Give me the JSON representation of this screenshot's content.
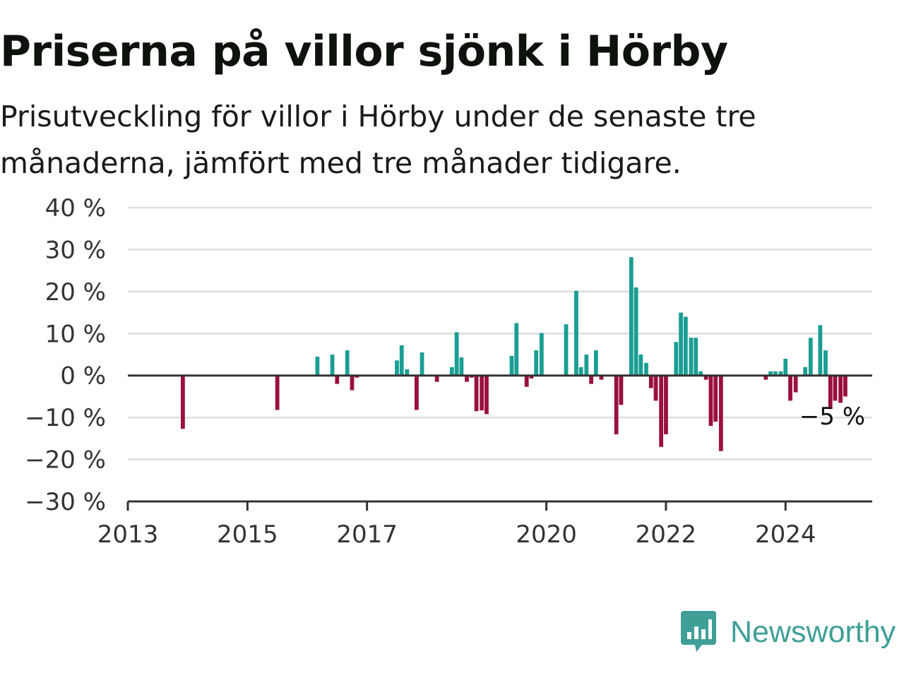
{
  "title": "Priserna på villor sjönk i Hörby",
  "subtitle": "Prisutveckling för villor i Hörby under de senaste tre månaderna, jämfört med tre månader tidigare.",
  "brand": {
    "name": "Newsworthy",
    "icon": "newsworthy-logo-icon",
    "color": "#3f9f97"
  },
  "colors": {
    "positive": "#1a9e93",
    "negative": "#99103d",
    "zero_line": "#333333",
    "grid": "#dddddd"
  },
  "chart_data": {
    "type": "bar",
    "title": "Priserna på villor sjönk i Hörby",
    "xlabel": "",
    "ylabel": "",
    "ylim": [
      -30,
      40
    ],
    "xlim": [
      2013.0,
      2025.45
    ],
    "y_ticks": [
      -30,
      -20,
      -10,
      0,
      10,
      20,
      30,
      40
    ],
    "y_tick_labels": [
      "−30 %",
      "−20 %",
      "−10 %",
      "0 %",
      "10 %",
      "20 %",
      "30 %",
      "40 %"
    ],
    "x_ticks": [
      2013,
      2015,
      2017,
      2020,
      2022,
      2024
    ],
    "x_tick_labels": [
      "2013",
      "2015",
      "2017",
      "2020",
      "2022",
      "2024"
    ],
    "grid": true,
    "end_label": "−5 %",
    "series": [
      {
        "values": [
          {
            "x": 2013.92,
            "y": -12.7
          },
          {
            "x": 2015.5,
            "y": -8.2
          },
          {
            "x": 2016.17,
            "y": 4.5
          },
          {
            "x": 2016.42,
            "y": 5.0
          },
          {
            "x": 2016.5,
            "y": -2.0
          },
          {
            "x": 2016.67,
            "y": 6.0
          },
          {
            "x": 2016.75,
            "y": -3.5
          },
          {
            "x": 2016.83,
            "y": -0.5
          },
          {
            "x": 2017.5,
            "y": 3.6
          },
          {
            "x": 2017.58,
            "y": 7.2
          },
          {
            "x": 2017.67,
            "y": 1.5
          },
          {
            "x": 2017.83,
            "y": -8.2
          },
          {
            "x": 2017.92,
            "y": 5.5
          },
          {
            "x": 2018.17,
            "y": -1.5
          },
          {
            "x": 2018.42,
            "y": 2.0
          },
          {
            "x": 2018.5,
            "y": 10.3
          },
          {
            "x": 2018.58,
            "y": 4.3
          },
          {
            "x": 2018.67,
            "y": -1.5
          },
          {
            "x": 2018.75,
            "y": -0.5
          },
          {
            "x": 2018.83,
            "y": -8.5
          },
          {
            "x": 2018.92,
            "y": -8.3
          },
          {
            "x": 2019.0,
            "y": -9.2
          },
          {
            "x": 2019.42,
            "y": 4.7
          },
          {
            "x": 2019.5,
            "y": 12.5
          },
          {
            "x": 2019.67,
            "y": -2.7
          },
          {
            "x": 2019.75,
            "y": -0.7
          },
          {
            "x": 2019.83,
            "y": 6.0
          },
          {
            "x": 2019.92,
            "y": 10.1
          },
          {
            "x": 2020.33,
            "y": 12.2
          },
          {
            "x": 2020.5,
            "y": 20.2
          },
          {
            "x": 2020.58,
            "y": 2.0
          },
          {
            "x": 2020.67,
            "y": 5.0
          },
          {
            "x": 2020.75,
            "y": -2.0
          },
          {
            "x": 2020.83,
            "y": 6.0
          },
          {
            "x": 2020.92,
            "y": -1.0
          },
          {
            "x": 2021.17,
            "y": -14.0
          },
          {
            "x": 2021.25,
            "y": -7.0
          },
          {
            "x": 2021.42,
            "y": 28.2
          },
          {
            "x": 2021.5,
            "y": 21.0
          },
          {
            "x": 2021.58,
            "y": 5.0
          },
          {
            "x": 2021.67,
            "y": 3.0
          },
          {
            "x": 2021.75,
            "y": -3.0
          },
          {
            "x": 2021.83,
            "y": -6.0
          },
          {
            "x": 2021.92,
            "y": -17.0
          },
          {
            "x": 2022.0,
            "y": -14.0
          },
          {
            "x": 2022.17,
            "y": 8.0
          },
          {
            "x": 2022.25,
            "y": 15.0
          },
          {
            "x": 2022.33,
            "y": 14.0
          },
          {
            "x": 2022.42,
            "y": 9.0
          },
          {
            "x": 2022.5,
            "y": 9.0
          },
          {
            "x": 2022.58,
            "y": 1.0
          },
          {
            "x": 2022.67,
            "y": -1.0
          },
          {
            "x": 2022.75,
            "y": -12.0
          },
          {
            "x": 2022.83,
            "y": -11.0
          },
          {
            "x": 2022.92,
            "y": -18.0
          },
          {
            "x": 2023.67,
            "y": -1.0
          },
          {
            "x": 2023.75,
            "y": 1.0
          },
          {
            "x": 2023.83,
            "y": 1.0
          },
          {
            "x": 2023.92,
            "y": 1.0
          },
          {
            "x": 2024.0,
            "y": 4.0
          },
          {
            "x": 2024.08,
            "y": -6.0
          },
          {
            "x": 2024.17,
            "y": -4.0
          },
          {
            "x": 2024.33,
            "y": 2.0
          },
          {
            "x": 2024.42,
            "y": 9.0
          },
          {
            "x": 2024.58,
            "y": 12.0
          },
          {
            "x": 2024.67,
            "y": 6.0
          },
          {
            "x": 2024.75,
            "y": -8.0
          },
          {
            "x": 2024.83,
            "y": -6.0
          },
          {
            "x": 2024.92,
            "y": -6.5
          },
          {
            "x": 2025.0,
            "y": -5.0
          }
        ]
      }
    ]
  }
}
